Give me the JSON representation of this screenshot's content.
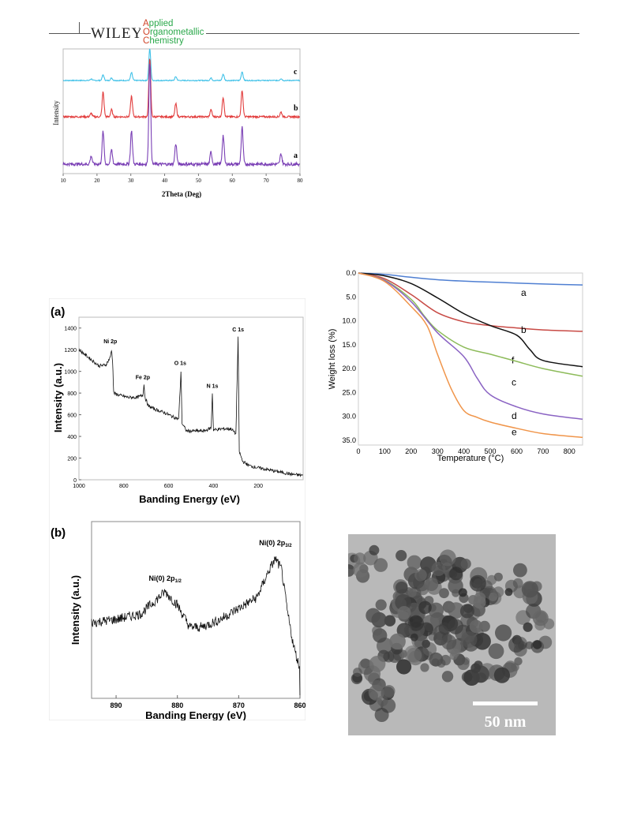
{
  "header": {
    "publisher": "WILEY",
    "journal_lines": [
      {
        "cap": "A",
        "rest": "pplied"
      },
      {
        "cap": "O",
        "rest": "rganometallic"
      },
      {
        "cap": "C",
        "rest": "hemistry"
      }
    ]
  },
  "colors": {
    "xrd_c": "#3fc1e8",
    "xrd_b": "#e23c3c",
    "xrd_a": "#7a3fb5",
    "tga_a": "#4f7fd2",
    "tga_b": "#c84a45",
    "tga_c": "#8dbb5a",
    "tga_d": "#8a63c3",
    "tga_e": "#f0954a",
    "tga_f": "#111111"
  },
  "chart_data": [
    {
      "type": "line",
      "id": "xrd",
      "xlabel": "2Theta (Deg)",
      "ylabel": "Intensity",
      "xlim": [
        10,
        80
      ],
      "x_ticks": [
        10,
        20,
        30,
        40,
        50,
        60,
        70,
        80
      ],
      "peak_positions": [
        18.3,
        21.8,
        24.3,
        30.2,
        35.6,
        43.3,
        53.7,
        57.3,
        62.9,
        74.4
      ],
      "series": [
        {
          "name": "c",
          "relative_peak_heights": [
            0.05,
            0.18,
            0.08,
            0.25,
            1.0,
            0.12,
            0.08,
            0.2,
            0.28,
            0.06
          ]
        },
        {
          "name": "b",
          "relative_peak_heights": [
            0.06,
            0.42,
            0.12,
            0.35,
            1.0,
            0.22,
            0.12,
            0.33,
            0.45,
            0.08
          ]
        },
        {
          "name": "a",
          "relative_peak_heights": [
            0.08,
            0.32,
            0.14,
            0.33,
            1.0,
            0.2,
            0.12,
            0.28,
            0.36,
            0.1
          ]
        }
      ]
    },
    {
      "type": "line",
      "id": "xps_survey",
      "panel_label": "(a)",
      "xlabel": "Banding Energy (eV)",
      "ylabel": "Intensity (a.u.)",
      "xlim": [
        1000,
        0
      ],
      "ylim": [
        0,
        1500
      ],
      "x_ticks": [
        1000,
        800,
        600,
        400,
        200
      ],
      "y_ticks": [
        0,
        200,
        400,
        600,
        800,
        1000,
        1200,
        1400
      ],
      "points": [
        [
          1000,
          1200
        ],
        [
          970,
          1150
        ],
        [
          940,
          1100
        ],
        [
          910,
          1050
        ],
        [
          880,
          1060
        ],
        [
          860,
          1130
        ],
        [
          855,
          1200
        ],
        [
          850,
          1100
        ],
        [
          845,
          800
        ],
        [
          820,
          780
        ],
        [
          780,
          760
        ],
        [
          740,
          760
        ],
        [
          715,
          780
        ],
        [
          710,
          880
        ],
        [
          705,
          760
        ],
        [
          690,
          680
        ],
        [
          660,
          650
        ],
        [
          620,
          620
        ],
        [
          580,
          580
        ],
        [
          555,
          560
        ],
        [
          545,
          1000
        ],
        [
          540,
          520
        ],
        [
          520,
          450
        ],
        [
          480,
          450
        ],
        [
          440,
          450
        ],
        [
          420,
          470
        ],
        [
          410,
          480
        ],
        [
          405,
          800
        ],
        [
          400,
          460
        ],
        [
          360,
          470
        ],
        [
          320,
          470
        ],
        [
          300,
          420
        ],
        [
          290,
          1320
        ],
        [
          285,
          260
        ],
        [
          270,
          170
        ],
        [
          240,
          130
        ],
        [
          200,
          110
        ],
        [
          150,
          90
        ],
        [
          100,
          70
        ],
        [
          50,
          50
        ],
        [
          0,
          40
        ]
      ],
      "annotations": [
        {
          "text": "Ni 2p",
          "x": 860,
          "y": 1260
        },
        {
          "text": "Fe 2p",
          "x": 715,
          "y": 930
        },
        {
          "text": "O 1s",
          "x": 548,
          "y": 1060
        },
        {
          "text": "N 1s",
          "x": 405,
          "y": 850
        },
        {
          "text": "C 1s",
          "x": 290,
          "y": 1370
        }
      ]
    },
    {
      "type": "line",
      "id": "xps_ni",
      "panel_label": "(b)",
      "xlabel": "Banding Energy (eV)",
      "ylabel": "Intensity (a.u.)",
      "xlim": [
        894,
        860
      ],
      "x_ticks": [
        890,
        880,
        870,
        860
      ],
      "points": [
        [
          894,
          0.42
        ],
        [
          890,
          0.45
        ],
        [
          886,
          0.5
        ],
        [
          883,
          0.65
        ],
        [
          882,
          0.7
        ],
        [
          880,
          0.58
        ],
        [
          878,
          0.38
        ],
        [
          876,
          0.38
        ],
        [
          873,
          0.45
        ],
        [
          870,
          0.55
        ],
        [
          867,
          0.65
        ],
        [
          865,
          0.9
        ],
        [
          864,
          1.0
        ],
        [
          863,
          0.9
        ],
        [
          862,
          0.5
        ],
        [
          861,
          0.2
        ],
        [
          860,
          0.0
        ]
      ],
      "annotations": [
        {
          "text": "Ni(0) 2p",
          "sub": "1/2",
          "x": 882,
          "y": 0.8
        },
        {
          "text": "Ni(0) 2p",
          "sub": "3/2",
          "x": 864,
          "y": 1.12
        }
      ]
    },
    {
      "type": "line",
      "id": "tga",
      "xlabel": "Temperature (°C)",
      "ylabel": "Weight loss (%)",
      "xlim": [
        0,
        850
      ],
      "ylim": [
        0,
        36
      ],
      "x_ticks": [
        0,
        100,
        200,
        300,
        400,
        500,
        600,
        700,
        800
      ],
      "y_ticks": [
        "0.0",
        "5.0",
        "10.0",
        "15.0",
        "20.0",
        "25.0",
        "30.0",
        "35.0"
      ],
      "series": [
        {
          "name": "a",
          "points": [
            [
              0,
              0
            ],
            [
              100,
              0.3
            ],
            [
              200,
              0.9
            ],
            [
              300,
              1.4
            ],
            [
              400,
              1.7
            ],
            [
              500,
              1.9
            ],
            [
              600,
              2.1
            ],
            [
              700,
              2.3
            ],
            [
              850,
              2.5
            ]
          ]
        },
        {
          "name": "b",
          "points": [
            [
              0,
              0
            ],
            [
              100,
              1.2
            ],
            [
              200,
              4.5
            ],
            [
              300,
              8.3
            ],
            [
              400,
              10.2
            ],
            [
              500,
              11.0
            ],
            [
              600,
              11.5
            ],
            [
              700,
              11.9
            ],
            [
              850,
              12.2
            ]
          ]
        },
        {
          "name": "f",
          "points": [
            [
              0,
              0
            ],
            [
              100,
              0.6
            ],
            [
              200,
              2.2
            ],
            [
              300,
              5.2
            ],
            [
              400,
              8.5
            ],
            [
              500,
              11.0
            ],
            [
              600,
              13.0
            ],
            [
              650,
              16.0
            ],
            [
              700,
              18.3
            ],
            [
              850,
              19.6
            ]
          ]
        },
        {
          "name": "c",
          "points": [
            [
              0,
              0
            ],
            [
              100,
              1.5
            ],
            [
              200,
              5.5
            ],
            [
              250,
              9.0
            ],
            [
              300,
              12.0
            ],
            [
              400,
              15.5
            ],
            [
              500,
              17.0
            ],
            [
              600,
              18.5
            ],
            [
              700,
              20.0
            ],
            [
              850,
              21.6
            ]
          ]
        },
        {
          "name": "d",
          "points": [
            [
              0,
              0
            ],
            [
              100,
              1.6
            ],
            [
              200,
              6.0
            ],
            [
              300,
              12.5
            ],
            [
              400,
              17.5
            ],
            [
              450,
              22.0
            ],
            [
              500,
              25.5
            ],
            [
              600,
              28.0
            ],
            [
              700,
              29.5
            ],
            [
              850,
              30.6
            ]
          ]
        },
        {
          "name": "e",
          "points": [
            [
              0,
              0
            ],
            [
              100,
              1.8
            ],
            [
              200,
              7.0
            ],
            [
              260,
              11.0
            ],
            [
              300,
              17.0
            ],
            [
              350,
              24.0
            ],
            [
              400,
              28.8
            ],
            [
              450,
              30.2
            ],
            [
              500,
              31.2
            ],
            [
              600,
              32.5
            ],
            [
              700,
              33.6
            ],
            [
              850,
              34.4
            ]
          ]
        }
      ]
    }
  ],
  "tem": {
    "scale_label": "50 nm"
  }
}
